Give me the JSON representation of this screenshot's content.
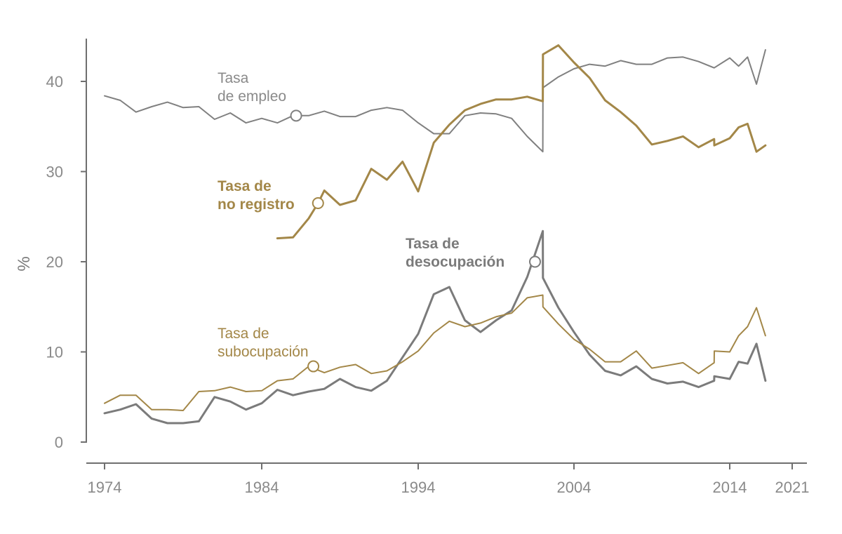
{
  "chart_data": {
    "type": "line",
    "ylabel": "%",
    "ylim": [
      0,
      45
    ],
    "xlim": [
      1974,
      2021
    ],
    "x_ticks": [
      1974,
      1984,
      1994,
      2004,
      2014,
      2021
    ],
    "y_ticks": [
      0,
      10,
      20,
      30,
      40
    ],
    "colors": {
      "gray": "#808080",
      "gold": "#a38748",
      "axis": "#6f6f6f"
    },
    "series": [
      {
        "key": "empleo",
        "label_lines": [
          "Tasa",
          "de empleo"
        ],
        "color": "#808080",
        "label_color": "#8a8a8a",
        "bold": false,
        "stroke": 2,
        "marker": [
          1986.2,
          36.2
        ],
        "points": [
          [
            1974,
            38.4
          ],
          [
            1975,
            37.9
          ],
          [
            1976,
            36.6
          ],
          [
            1977,
            37.2
          ],
          [
            1978,
            37.7
          ],
          [
            1979,
            37.1
          ],
          [
            1980,
            37.2
          ],
          [
            1981,
            35.8
          ],
          [
            1982,
            36.5
          ],
          [
            1983,
            35.4
          ],
          [
            1984,
            35.9
          ],
          [
            1985,
            35.4
          ],
          [
            1986,
            36.2
          ],
          [
            1987,
            36.2
          ],
          [
            1988,
            36.7
          ],
          [
            1989,
            36.1
          ],
          [
            1990,
            36.1
          ],
          [
            1991,
            36.8
          ],
          [
            1992,
            37.1
          ],
          [
            1993,
            36.8
          ],
          [
            1994,
            35.4
          ],
          [
            1995,
            34.2
          ],
          [
            1996,
            34.2
          ],
          [
            1997,
            36.2
          ],
          [
            1998,
            36.5
          ],
          [
            1999,
            36.4
          ],
          [
            2000,
            35.9
          ],
          [
            2001,
            33.9
          ],
          [
            2002,
            32.2
          ],
          [
            2002.01,
            39.3
          ],
          [
            2003,
            40.5
          ],
          [
            2004,
            41.4
          ],
          [
            2005,
            41.9
          ],
          [
            2006,
            41.7
          ],
          [
            2007,
            42.3
          ],
          [
            2008,
            41.9
          ],
          [
            2009,
            41.9
          ],
          [
            2010,
            42.6
          ],
          [
            2011,
            42.7
          ],
          [
            2012,
            42.2
          ],
          [
            2013,
            41.5
          ],
          [
            2014,
            42.6
          ],
          [
            2015,
            41.7
          ],
          [
            2016,
            42.7
          ],
          [
            2017,
            39.7
          ],
          [
            2018,
            43.5
          ]
        ]
      },
      {
        "key": "no_registro",
        "label_lines": [
          "Tasa de",
          "no registro"
        ],
        "color": "#a38748",
        "label_color": "#a38748",
        "bold": true,
        "stroke": 3,
        "marker": [
          1987.6,
          26.5
        ],
        "points": [
          [
            1985,
            22.6
          ],
          [
            1986,
            22.7
          ],
          [
            1987,
            24.8
          ],
          [
            1987.6,
            26.5
          ],
          [
            1988,
            27.9
          ],
          [
            1989,
            26.3
          ],
          [
            1990,
            26.8
          ],
          [
            1991,
            30.3
          ],
          [
            1992,
            29.1
          ],
          [
            1993,
            31.1
          ],
          [
            1994,
            27.8
          ],
          [
            1995,
            33.2
          ],
          [
            1996,
            35.2
          ],
          [
            1997,
            36.8
          ],
          [
            1998,
            37.5
          ],
          [
            1999,
            38.0
          ],
          [
            2000,
            38.0
          ],
          [
            2001,
            38.3
          ],
          [
            2002,
            37.8
          ],
          [
            2002.01,
            43.0
          ],
          [
            2003,
            44.0
          ],
          [
            2004,
            42.1
          ],
          [
            2005,
            40.4
          ],
          [
            2006,
            37.9
          ],
          [
            2007,
            36.6
          ],
          [
            2008,
            35.1
          ],
          [
            2009,
            33.0
          ],
          [
            2010,
            33.4
          ],
          [
            2011,
            33.9
          ],
          [
            2012,
            32.7
          ],
          [
            2013,
            33.6
          ],
          [
            2013.01,
            32.9
          ],
          [
            2014,
            33.7
          ],
          [
            2015,
            34.9
          ],
          [
            2016,
            35.3
          ],
          [
            2017,
            32.2
          ],
          [
            2018,
            32.9
          ]
        ]
      },
      {
        "key": "desocupacion",
        "label_lines": [
          "Tasa de",
          "desocupación"
        ],
        "color": "#7b7b7b",
        "label_color": "#7b7b7b",
        "bold": true,
        "stroke": 3,
        "marker": [
          2001.5,
          20.0
        ],
        "points": [
          [
            1974,
            3.2
          ],
          [
            1975,
            3.6
          ],
          [
            1976,
            4.2
          ],
          [
            1977,
            2.6
          ],
          [
            1978,
            2.1
          ],
          [
            1979,
            2.1
          ],
          [
            1980,
            2.3
          ],
          [
            1981,
            5.0
          ],
          [
            1982,
            4.5
          ],
          [
            1983,
            3.6
          ],
          [
            1984,
            4.3
          ],
          [
            1985,
            5.8
          ],
          [
            1986,
            5.2
          ],
          [
            1987,
            5.6
          ],
          [
            1988,
            5.9
          ],
          [
            1989,
            7.0
          ],
          [
            1990,
            6.1
          ],
          [
            1991,
            5.7
          ],
          [
            1992,
            6.8
          ],
          [
            1993,
            9.4
          ],
          [
            1994,
            12.0
          ],
          [
            1995,
            16.4
          ],
          [
            1996,
            17.2
          ],
          [
            1997,
            13.5
          ],
          [
            1998,
            12.2
          ],
          [
            1999,
            13.5
          ],
          [
            2000,
            14.6
          ],
          [
            2001,
            18.3
          ],
          [
            2002,
            23.4
          ],
          [
            2002.01,
            18.2
          ],
          [
            2003,
            14.9
          ],
          [
            2004,
            12.2
          ],
          [
            2005,
            9.7
          ],
          [
            2006,
            7.9
          ],
          [
            2007,
            7.4
          ],
          [
            2008,
            8.4
          ],
          [
            2009,
            7.0
          ],
          [
            2010,
            6.5
          ],
          [
            2011,
            6.7
          ],
          [
            2012,
            6.1
          ],
          [
            2013,
            6.8
          ],
          [
            2013.01,
            7.3
          ],
          [
            2014,
            7.0
          ],
          [
            2015,
            8.9
          ],
          [
            2016,
            8.7
          ],
          [
            2017,
            10.9
          ],
          [
            2018,
            6.8
          ]
        ]
      },
      {
        "key": "subocupacion",
        "label_lines": [
          "Tasa de",
          "subocupación"
        ],
        "color": "#a38748",
        "label_color": "#a38748",
        "bold": false,
        "stroke": 2,
        "marker": [
          1987.3,
          8.4
        ],
        "points": [
          [
            1974,
            4.3
          ],
          [
            1975,
            5.2
          ],
          [
            1976,
            5.2
          ],
          [
            1977,
            3.6
          ],
          [
            1978,
            3.6
          ],
          [
            1979,
            3.5
          ],
          [
            1980,
            5.6
          ],
          [
            1981,
            5.7
          ],
          [
            1982,
            6.1
          ],
          [
            1983,
            5.6
          ],
          [
            1984,
            5.7
          ],
          [
            1985,
            6.8
          ],
          [
            1986,
            7.0
          ],
          [
            1987,
            8.4
          ],
          [
            1988,
            7.7
          ],
          [
            1989,
            8.3
          ],
          [
            1990,
            8.6
          ],
          [
            1991,
            7.6
          ],
          [
            1992,
            7.9
          ],
          [
            1993,
            8.9
          ],
          [
            1994,
            10.1
          ],
          [
            1995,
            12.1
          ],
          [
            1996,
            13.4
          ],
          [
            1997,
            12.8
          ],
          [
            1998,
            13.2
          ],
          [
            1999,
            13.9
          ],
          [
            2000,
            14.3
          ],
          [
            2001,
            16.0
          ],
          [
            2002,
            16.3
          ],
          [
            2002.01,
            15.0
          ],
          [
            2003,
            13.1
          ],
          [
            2004,
            11.4
          ],
          [
            2005,
            10.3
          ],
          [
            2006,
            8.9
          ],
          [
            2007,
            8.9
          ],
          [
            2008,
            10.1
          ],
          [
            2009,
            8.2
          ],
          [
            2010,
            8.5
          ],
          [
            2011,
            8.8
          ],
          [
            2012,
            7.6
          ],
          [
            2013,
            8.8
          ],
          [
            2013.01,
            10.1
          ],
          [
            2014,
            10.0
          ],
          [
            2015,
            11.8
          ],
          [
            2016,
            12.8
          ],
          [
            2017,
            14.9
          ],
          [
            2018,
            11.8
          ]
        ]
      }
    ]
  }
}
